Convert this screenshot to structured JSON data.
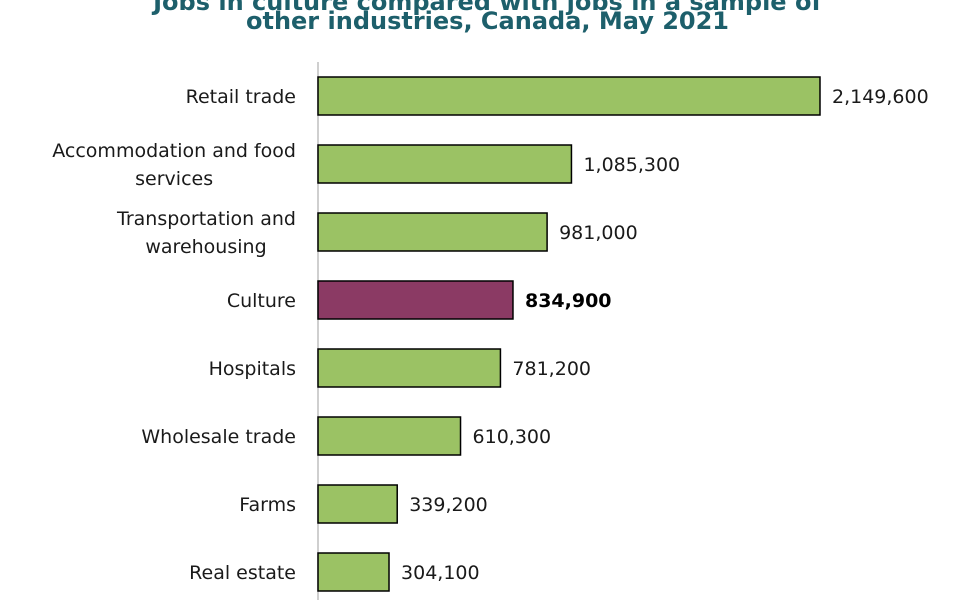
{
  "chart_data": {
    "type": "bar",
    "orientation": "horizontal",
    "title_lines": [
      "Jobs in culture compared with jobs in a sample of",
      "other industries, Canada,  May 2021"
    ],
    "xlabel": "",
    "ylabel": "",
    "xlim": [
      0,
      2149600
    ],
    "grid": false,
    "legend": "none",
    "categories": [
      [
        "Retail trade"
      ],
      [
        "Accommodation and food",
        "services"
      ],
      [
        "Transportation and",
        "warehousing"
      ],
      [
        "Culture"
      ],
      [
        "Hospitals"
      ],
      [
        "Wholesale trade"
      ],
      [
        "Farms"
      ],
      [
        "Real estate"
      ]
    ],
    "values": [
      2149600,
      1085300,
      981000,
      834900,
      781200,
      610300,
      339200,
      304100
    ],
    "value_labels": [
      "2,149,600",
      "1,085,300",
      "981,000",
      "834,900",
      "781,200",
      "610,300",
      "339,200",
      "304,100"
    ],
    "highlight_index": 3,
    "colors": {
      "bar": "#9bc264",
      "highlight": "#8b3a64",
      "outline": "#000000",
      "axis": "#bfbfbf",
      "title": "#1d5f6b"
    }
  }
}
